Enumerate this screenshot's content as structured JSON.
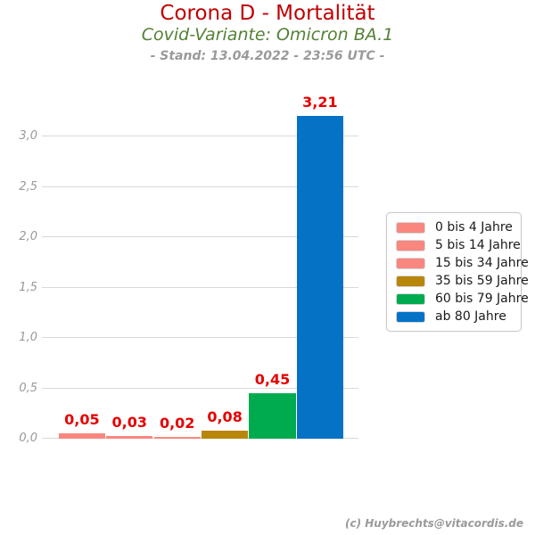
{
  "chart_data": {
    "type": "bar",
    "title": "Corona D - Mortalität",
    "subtitle": "Covid-Variante: Omicron BA.1",
    "stand_line": "- Stand: 13.04.2022 - 23:56 UTC -",
    "categories": [
      "0 bis 4 Jahre",
      "5 bis 14 Jahre",
      "15 bis 34 Jahre",
      "35 bis 59 Jahre",
      "60 bis 79 Jahre",
      "ab 80 Jahre"
    ],
    "values": [
      0.05,
      0.03,
      0.02,
      0.08,
      0.45,
      3.21
    ],
    "value_labels": [
      "0,05",
      "0,03",
      "0,02",
      "0,08",
      "0,45",
      "3,21"
    ],
    "bar_colors": [
      "#F9867F",
      "#F9867F",
      "#F9867F",
      "#B8860B",
      "#00AB50",
      "#0572C6"
    ],
    "y_ticks": [
      {
        "value": 0.0,
        "label": "0,0"
      },
      {
        "value": 0.5,
        "label": "0,5"
      },
      {
        "value": 1.0,
        "label": "1,0"
      },
      {
        "value": 1.5,
        "label": "1,5"
      },
      {
        "value": 2.0,
        "label": "2,0"
      },
      {
        "value": 2.5,
        "label": "2,5"
      },
      {
        "value": 3.0,
        "label": "3,0"
      }
    ],
    "ylim": [
      0,
      3.38
    ],
    "grid": true,
    "legend_position": "right",
    "colors_meaning": {
      "title_red": "#C00000",
      "subtitle_green": "#538135",
      "value_label_red": "#E60000",
      "tick_gray": "#999999",
      "gridline_gray": "#D9D9D9"
    }
  },
  "footer": {
    "credit": "(c) Huybrechts@vitacordis.de"
  }
}
